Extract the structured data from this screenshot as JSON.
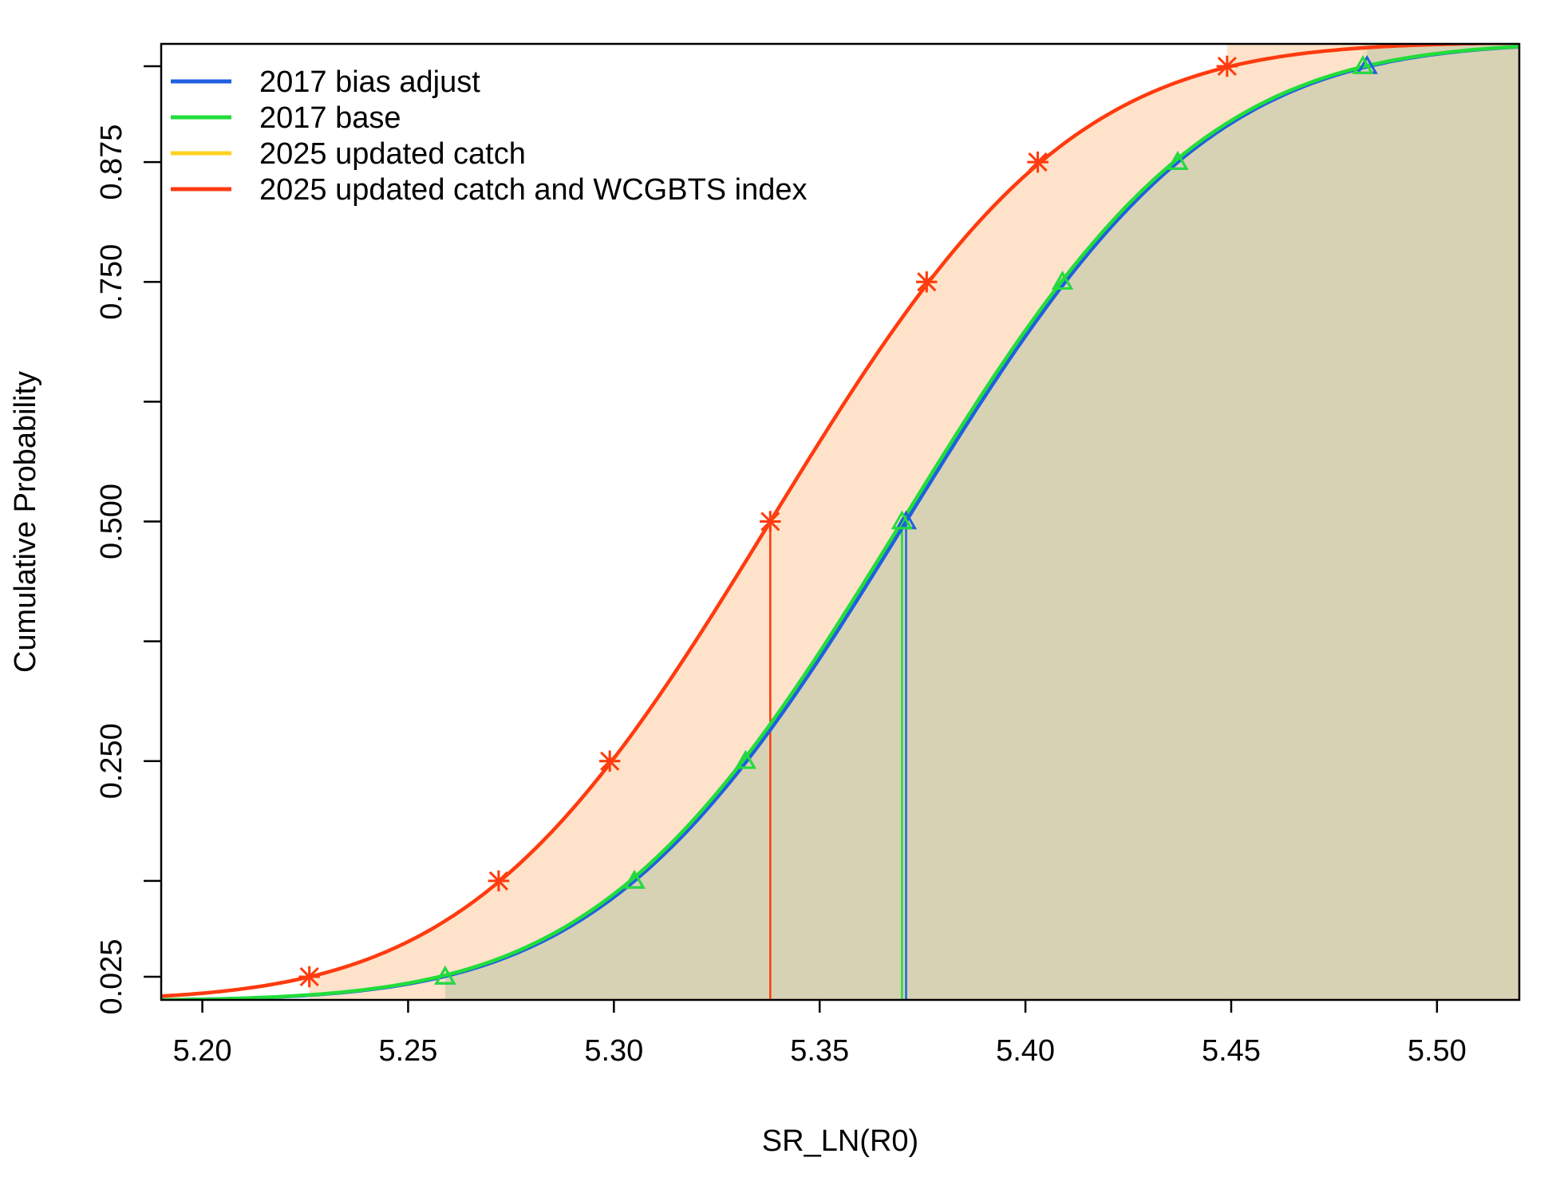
{
  "chart_data": {
    "type": "line",
    "xlabel": "SR_LN(R0)",
    "ylabel": "Cumulative Probability",
    "xlim": [
      5.19,
      5.52
    ],
    "ylim": [
      -0.0,
      1.0
    ],
    "x_ticks": [
      5.2,
      5.25,
      5.3,
      5.35,
      5.4,
      5.45,
      5.5
    ],
    "x_tick_labels": [
      "5.20",
      "5.25",
      "5.30",
      "5.35",
      "5.40",
      "5.45",
      "5.50"
    ],
    "y_ticks": [
      0.025,
      0.125,
      0.25,
      0.375,
      0.5,
      0.625,
      0.75,
      0.875,
      0.975
    ],
    "y_tick_labels": [
      "0.025",
      "",
      "0.250",
      "",
      "0.500",
      "",
      "0.750",
      "0.875",
      ""
    ],
    "legend_position": "top-left",
    "grid": false,
    "series": [
      {
        "name": "2017 bias adjust",
        "color": "#1F5FE0",
        "marker": "triangle",
        "mean": 5.371,
        "sd": 0.0574,
        "median": 5.371,
        "quantile_probs": [
          0.025,
          0.125,
          0.25,
          0.5,
          0.75,
          0.875,
          0.975
        ],
        "quantile_values": [
          5.259,
          5.305,
          5.332,
          5.371,
          5.409,
          5.437,
          5.483
        ]
      },
      {
        "name": "2017 base",
        "color": "#22DD3A",
        "marker": "triangle",
        "mean": 5.37,
        "sd": 0.0574,
        "median": 5.37,
        "quantile_probs": [
          0.025,
          0.125,
          0.25,
          0.5,
          0.75,
          0.875,
          0.975
        ],
        "quantile_values": [
          5.259,
          5.305,
          5.332,
          5.37,
          5.409,
          5.437,
          5.482
        ]
      },
      {
        "name": "2025 updated catch",
        "color": "#FFD21F",
        "marker": "asterisk",
        "mean": 5.338,
        "sd": 0.0571,
        "median": 5.338,
        "quantile_probs": [
          0.025,
          0.125,
          0.25,
          0.5,
          0.75,
          0.875,
          0.975
        ],
        "quantile_values": [
          5.226,
          5.272,
          5.299,
          5.338,
          5.376,
          5.403,
          5.449
        ]
      },
      {
        "name": "2025 updated catch and WCGBTS index",
        "color": "#FF3A12",
        "marker": "asterisk",
        "mean": 5.338,
        "sd": 0.0571,
        "median": 5.338,
        "quantile_probs": [
          0.025,
          0.125,
          0.25,
          0.5,
          0.75,
          0.875,
          0.975
        ],
        "quantile_values": [
          5.226,
          5.272,
          5.299,
          5.338,
          5.376,
          5.403,
          5.449
        ]
      }
    ]
  }
}
